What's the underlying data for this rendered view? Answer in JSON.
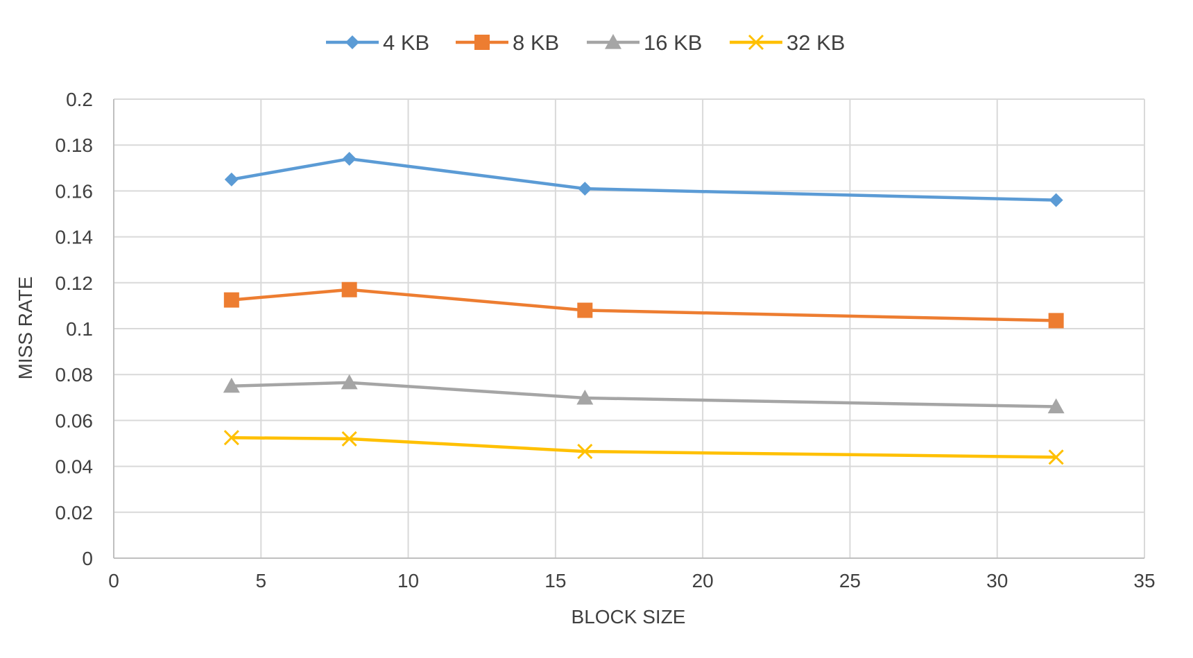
{
  "chart_data": {
    "type": "line",
    "title": "",
    "xlabel": "BLOCK SIZE",
    "ylabel": "MISS RATE",
    "xlim": [
      0,
      35
    ],
    "ylim": [
      0,
      0.2
    ],
    "x_ticks": [
      0,
      5,
      10,
      15,
      20,
      25,
      30,
      35
    ],
    "y_ticks": [
      0,
      0.02,
      0.04,
      0.06,
      0.08,
      0.1,
      0.12,
      0.14,
      0.16,
      0.18,
      0.2
    ],
    "x_tick_labels": [
      "0",
      "5",
      "10",
      "15",
      "20",
      "25",
      "30",
      "35"
    ],
    "y_tick_labels": [
      "0",
      "0.02",
      "0.04",
      "0.06",
      "0.08",
      "0.1",
      "0.12",
      "0.14",
      "0.16",
      "0.18",
      "0.2"
    ],
    "grid": true,
    "legend_position": "top-center",
    "x": [
      4,
      8,
      16,
      32
    ],
    "series": [
      {
        "name": "4 KB",
        "values": [
          0.165,
          0.174,
          0.161,
          0.156
        ],
        "color": "#5B9BD5",
        "marker": "diamond"
      },
      {
        "name": "8 KB",
        "values": [
          0.1125,
          0.117,
          0.108,
          0.1035
        ],
        "color": "#ED7D31",
        "marker": "square"
      },
      {
        "name": "16 KB",
        "values": [
          0.075,
          0.0765,
          0.0698,
          0.066
        ],
        "color": "#A5A5A5",
        "marker": "triangle"
      },
      {
        "name": "32 KB",
        "values": [
          0.0525,
          0.052,
          0.0465,
          0.044
        ],
        "color": "#FFC000",
        "marker": "x"
      }
    ]
  }
}
